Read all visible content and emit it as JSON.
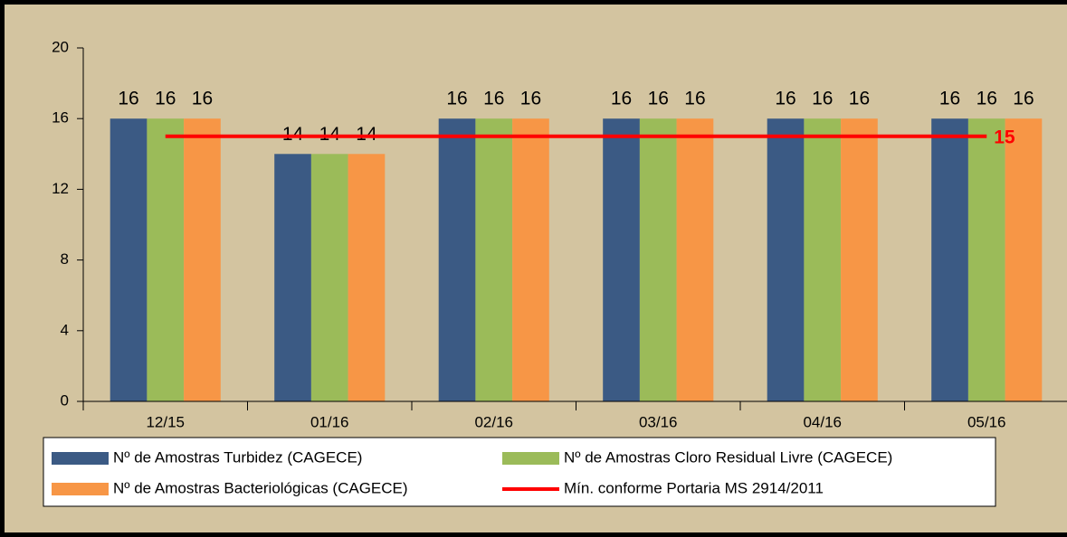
{
  "chart_data": {
    "type": "bar",
    "categories": [
      "12/15",
      "01/16",
      "02/16",
      "03/16",
      "04/16",
      "05/16"
    ],
    "series": [
      {
        "name": "Nº de Amostras Turbidez (CAGECE)",
        "color": "#3b5a84",
        "values": [
          16,
          14,
          16,
          16,
          16,
          16
        ]
      },
      {
        "name": "Nº de Amostras Cloro Residual Livre (CAGECE)",
        "color": "#9bbb59",
        "values": [
          16,
          14,
          16,
          16,
          16,
          16
        ]
      },
      {
        "name": "Nº de Amostras Bacteriológicas (CAGECE)",
        "color": "#f79646",
        "values": [
          16,
          14,
          16,
          16,
          16,
          16
        ]
      },
      {
        "name": "Mín. conforme Portaria MS 2914/2011",
        "color": "#ff0000",
        "type": "line",
        "values": [
          15,
          15,
          15,
          15,
          15,
          15
        ]
      }
    ],
    "ylim": [
      0,
      20
    ],
    "yticks": [
      0,
      4,
      8,
      12,
      16,
      20
    ],
    "grid": false,
    "legend": "bottom"
  }
}
